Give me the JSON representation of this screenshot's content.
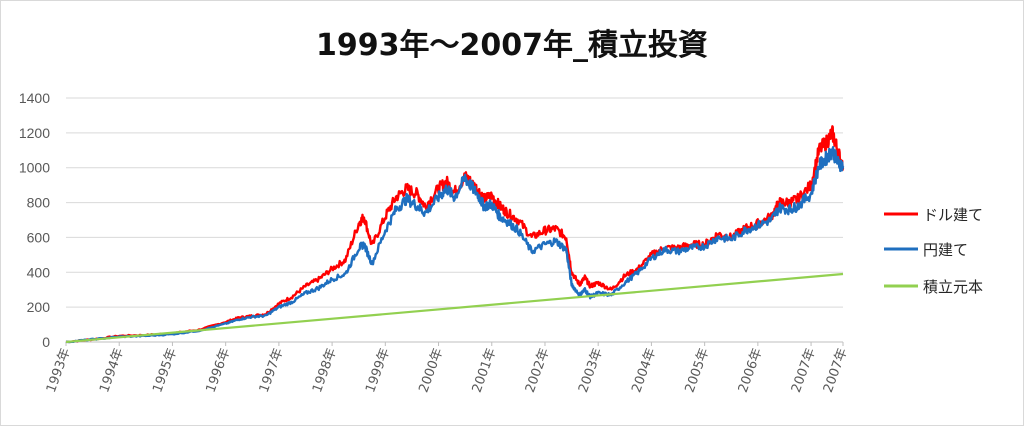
{
  "chart_data": {
    "type": "line",
    "title": "1993年～2007年_積立投資",
    "xlabel": "",
    "ylabel": "",
    "ylim": [
      0,
      1400
    ],
    "yticks": [
      0,
      200,
      400,
      600,
      800,
      1000,
      1200,
      1400
    ],
    "xlim": [
      1993.0,
      2007.6
    ],
    "xtick_labels": [
      "1993年",
      "1994年",
      "1995年",
      "1996年",
      "1997年",
      "1998年",
      "1999年",
      "2000年",
      "2001年",
      "2002年",
      "2003年",
      "2004年",
      "2005年",
      "2006年",
      "2007年",
      "2007年"
    ],
    "xtick_positions": [
      1993,
      1994,
      1995,
      1996,
      1997,
      1998,
      1999,
      2000,
      2001,
      2002,
      2003,
      2004,
      2005,
      2006,
      2007,
      2007.6
    ],
    "grid": "horizontal",
    "legend_position": "right",
    "colors": {
      "dollar": "#ff0000",
      "yen": "#1f6fbf",
      "principal": "#92d050"
    },
    "series": [
      {
        "name": "ドル建て",
        "x": [
          1993.0,
          1993.5,
          1994.0,
          1994.5,
          1995.0,
          1995.5,
          1996.0,
          1996.25,
          1996.5,
          1996.75,
          1997.0,
          1997.25,
          1997.5,
          1997.75,
          1998.0,
          1998.25,
          1998.5,
          1998.6,
          1998.75,
          1999.0,
          1999.2,
          1999.4,
          1999.6,
          1999.75,
          2000.0,
          2000.15,
          2000.3,
          2000.5,
          2000.6,
          2000.75,
          2000.85,
          2001.0,
          2001.15,
          2001.3,
          2001.5,
          2001.75,
          2002.0,
          2002.2,
          2002.4,
          2002.5,
          2002.65,
          2002.75,
          2002.85,
          2003.0,
          2003.25,
          2003.5,
          2003.75,
          2004.0,
          2004.25,
          2004.5,
          2004.75,
          2005.0,
          2005.25,
          2005.5,
          2005.75,
          2006.0,
          2006.25,
          2006.4,
          2006.6,
          2006.75,
          2007.0,
          2007.15,
          2007.3,
          2007.4,
          2007.5,
          2007.6
        ],
        "values": [
          0,
          15,
          35,
          40,
          50,
          70,
          115,
          140,
          150,
          160,
          220,
          260,
          320,
          360,
          420,
          470,
          680,
          720,
          550,
          720,
          830,
          880,
          850,
          780,
          880,
          920,
          860,
          950,
          920,
          870,
          820,
          840,
          780,
          740,
          700,
          600,
          640,
          650,
          600,
          400,
          330,
          370,
          320,
          340,
          300,
          380,
          420,
          500,
          540,
          540,
          560,
          560,
          620,
          600,
          650,
          680,
          720,
          800,
          800,
          820,
          900,
          1100,
          1150,
          1200,
          1100,
          1000
        ]
      },
      {
        "name": "円建て",
        "x": [
          1993.0,
          1993.5,
          1994.0,
          1994.5,
          1995.0,
          1995.5,
          1996.0,
          1996.25,
          1996.5,
          1996.75,
          1997.0,
          1997.25,
          1997.5,
          1997.75,
          1998.0,
          1998.25,
          1998.5,
          1998.6,
          1998.75,
          1999.0,
          1999.2,
          1999.4,
          1999.6,
          1999.75,
          2000.0,
          2000.15,
          2000.3,
          2000.5,
          2000.6,
          2000.75,
          2000.85,
          2001.0,
          2001.15,
          2001.3,
          2001.5,
          2001.75,
          2002.0,
          2002.2,
          2002.4,
          2002.5,
          2002.65,
          2002.75,
          2002.85,
          2003.0,
          2003.25,
          2003.5,
          2003.75,
          2004.0,
          2004.25,
          2004.5,
          2004.75,
          2005.0,
          2005.25,
          2005.5,
          2005.75,
          2006.0,
          2006.25,
          2006.4,
          2006.6,
          2006.75,
          2007.0,
          2007.15,
          2007.3,
          2007.4,
          2007.5,
          2007.6
        ],
        "values": [
          0,
          15,
          30,
          35,
          45,
          65,
          105,
          130,
          145,
          150,
          200,
          230,
          280,
          310,
          360,
          390,
          540,
          560,
          450,
          640,
          760,
          820,
          780,
          740,
          830,
          880,
          830,
          940,
          900,
          840,
          780,
          790,
          720,
          690,
          640,
          520,
          560,
          580,
          530,
          330,
          270,
          300,
          260,
          280,
          270,
          340,
          400,
          480,
          530,
          520,
          540,
          550,
          600,
          590,
          640,
          670,
          700,
          770,
          760,
          780,
          850,
          1010,
          1060,
          1100,
          1030,
          1010
        ]
      },
      {
        "name": "積立元本",
        "x": [
          1993.0,
          2007.6
        ],
        "values": [
          0,
          390
        ]
      }
    ]
  }
}
